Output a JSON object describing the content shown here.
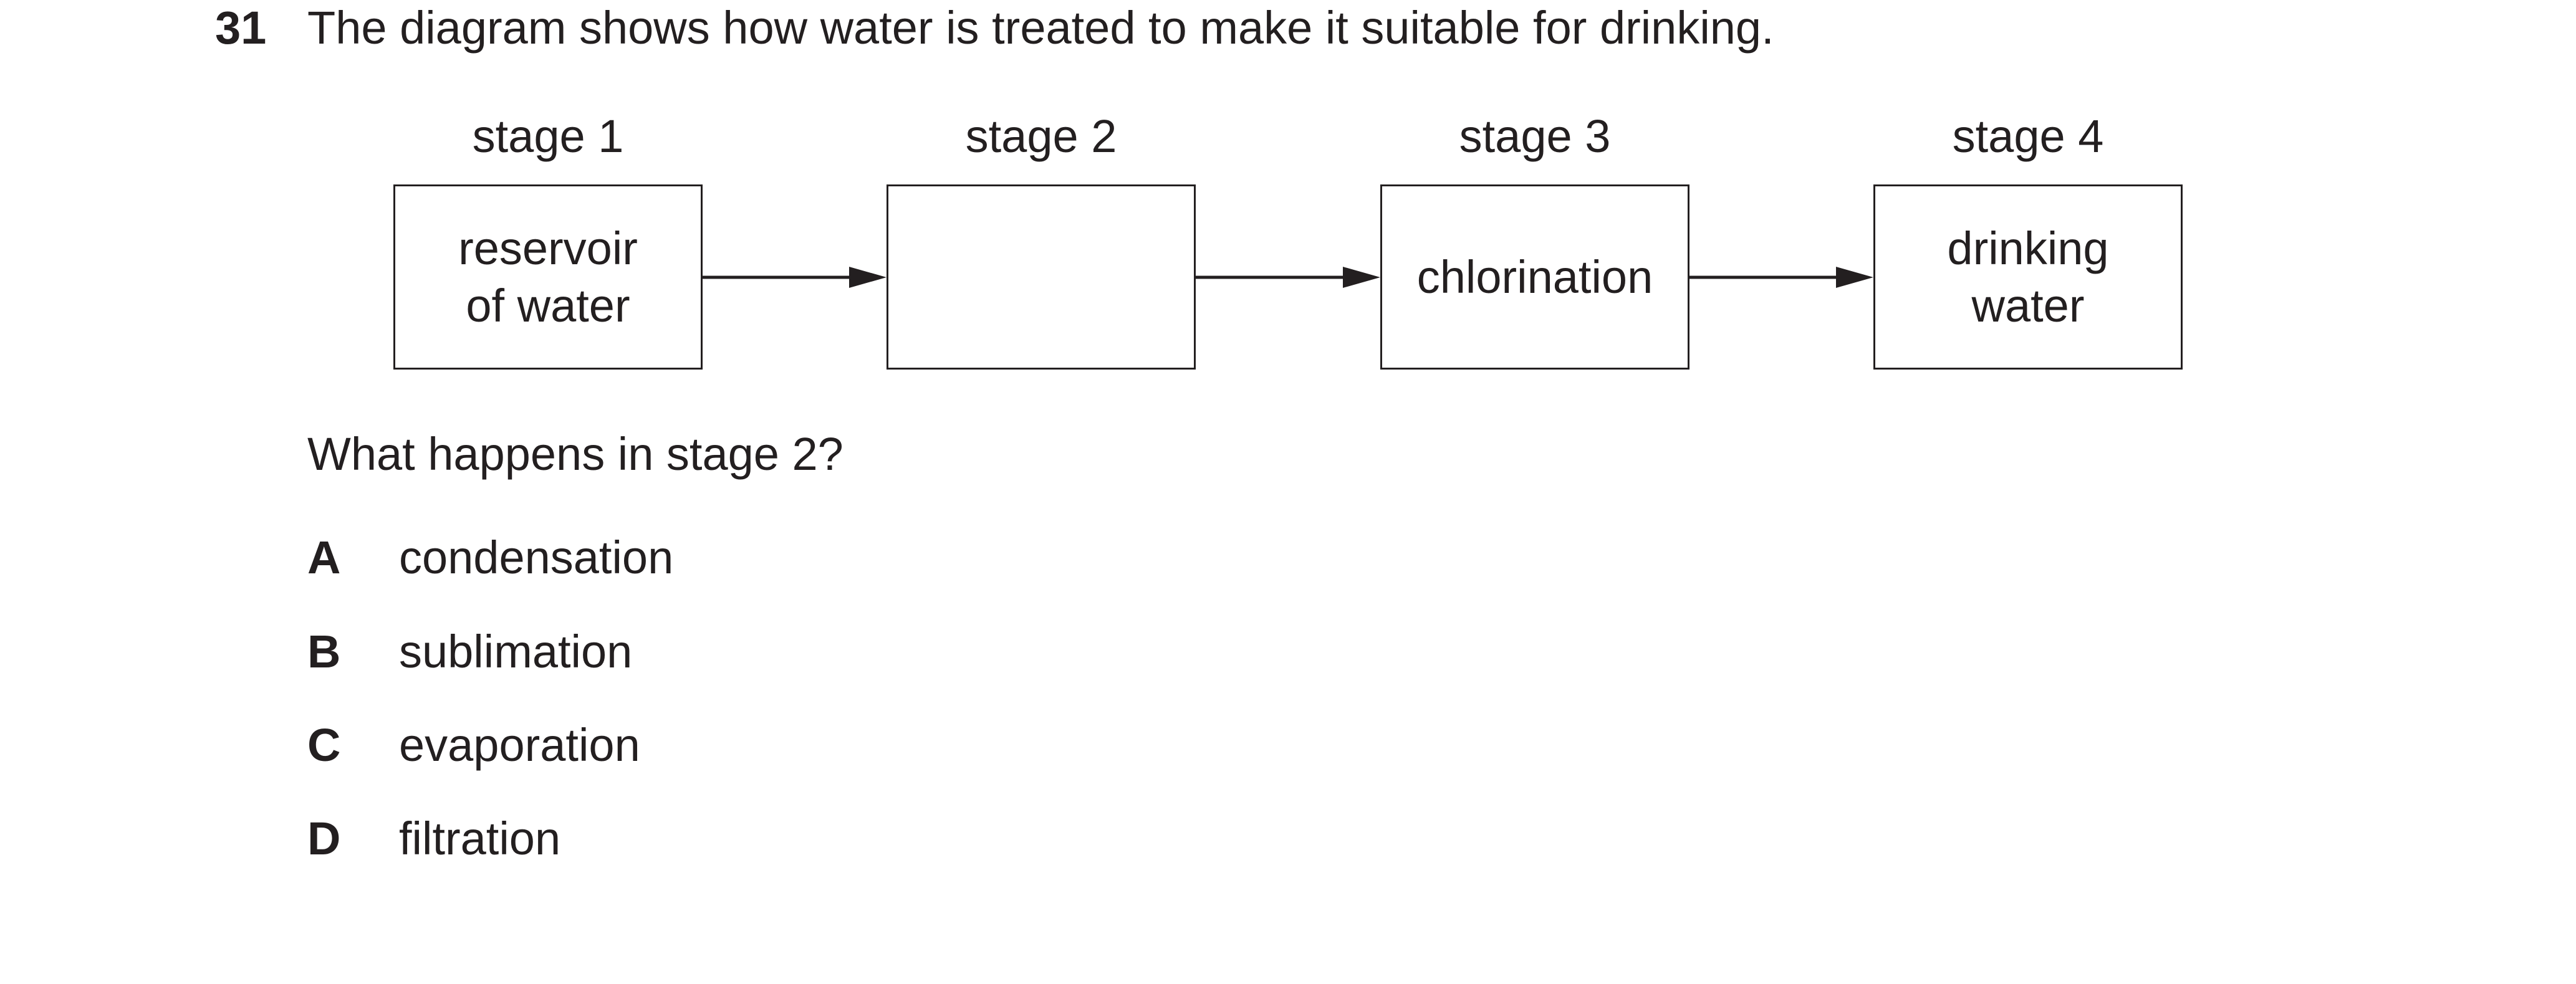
{
  "question": {
    "number": "31",
    "stem": "The diagram shows how water is treated to make it suitable for drinking.",
    "prompt": "What happens in stage 2?"
  },
  "diagram": {
    "stages": [
      {
        "label": "stage 1",
        "box_text": "reservoir\nof water"
      },
      {
        "label": "stage 2",
        "box_text": ""
      },
      {
        "label": "stage 3",
        "box_text": "chlorination"
      },
      {
        "label": "stage 4",
        "box_text": "drinking\nwater"
      }
    ]
  },
  "options": [
    {
      "letter": "A",
      "text": "condensation"
    },
    {
      "letter": "B",
      "text": "sublimation"
    },
    {
      "letter": "C",
      "text": "evaporation"
    },
    {
      "letter": "D",
      "text": "filtration"
    }
  ]
}
